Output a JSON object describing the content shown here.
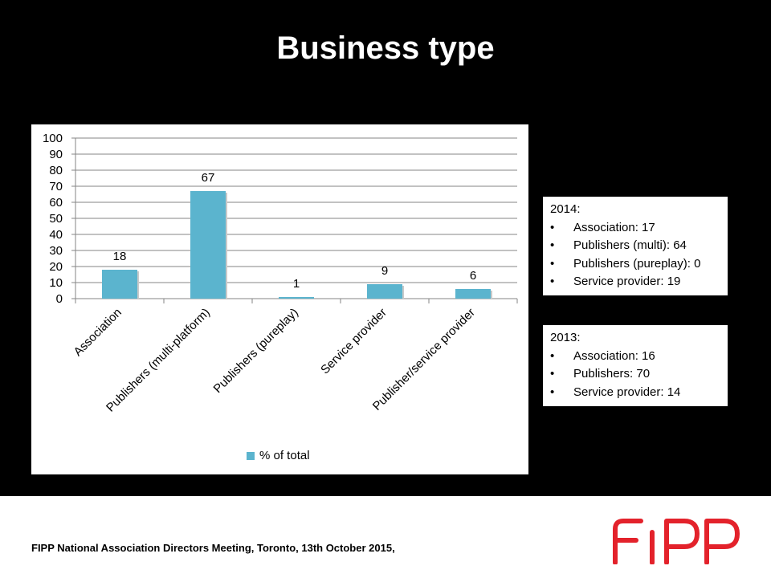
{
  "slide": {
    "title": "Business type",
    "footer": "FIPP National Association Directors Meeting, Toronto, 13th October 2015,",
    "logo_text": "FIPP"
  },
  "colors": {
    "bar": "#5BB4CE",
    "logo_red": "#E3222B",
    "gridline": "#868686"
  },
  "chart_data": {
    "type": "bar",
    "categories": [
      "Association",
      "Publishers (multi-platform)",
      "Publishers (pureplay)",
      "Service provider",
      "Publisher/service provider"
    ],
    "series": [
      {
        "name": "% of total",
        "values": [
          18,
          67,
          1,
          9,
          6
        ]
      }
    ],
    "data_labels": [
      "18",
      "67",
      "1",
      "9",
      "6"
    ],
    "y_ticks": [
      "0",
      "10",
      "20",
      "30",
      "40",
      "50",
      "60",
      "70",
      "80",
      "90",
      "100"
    ],
    "ylim": [
      0,
      100
    ],
    "title": "",
    "xlabel": "",
    "ylabel": "",
    "grid": true,
    "legend_position": "bottom"
  },
  "boxes": {
    "y2014": {
      "heading": "2014:",
      "items": [
        "Association: 17",
        "Publishers (multi): 64",
        "Publishers (pureplay): 0",
        "Service provider: 19"
      ]
    },
    "y2013": {
      "heading": "2013:",
      "items": [
        "Association: 16",
        "Publishers: 70",
        "Service provider: 14"
      ]
    }
  }
}
